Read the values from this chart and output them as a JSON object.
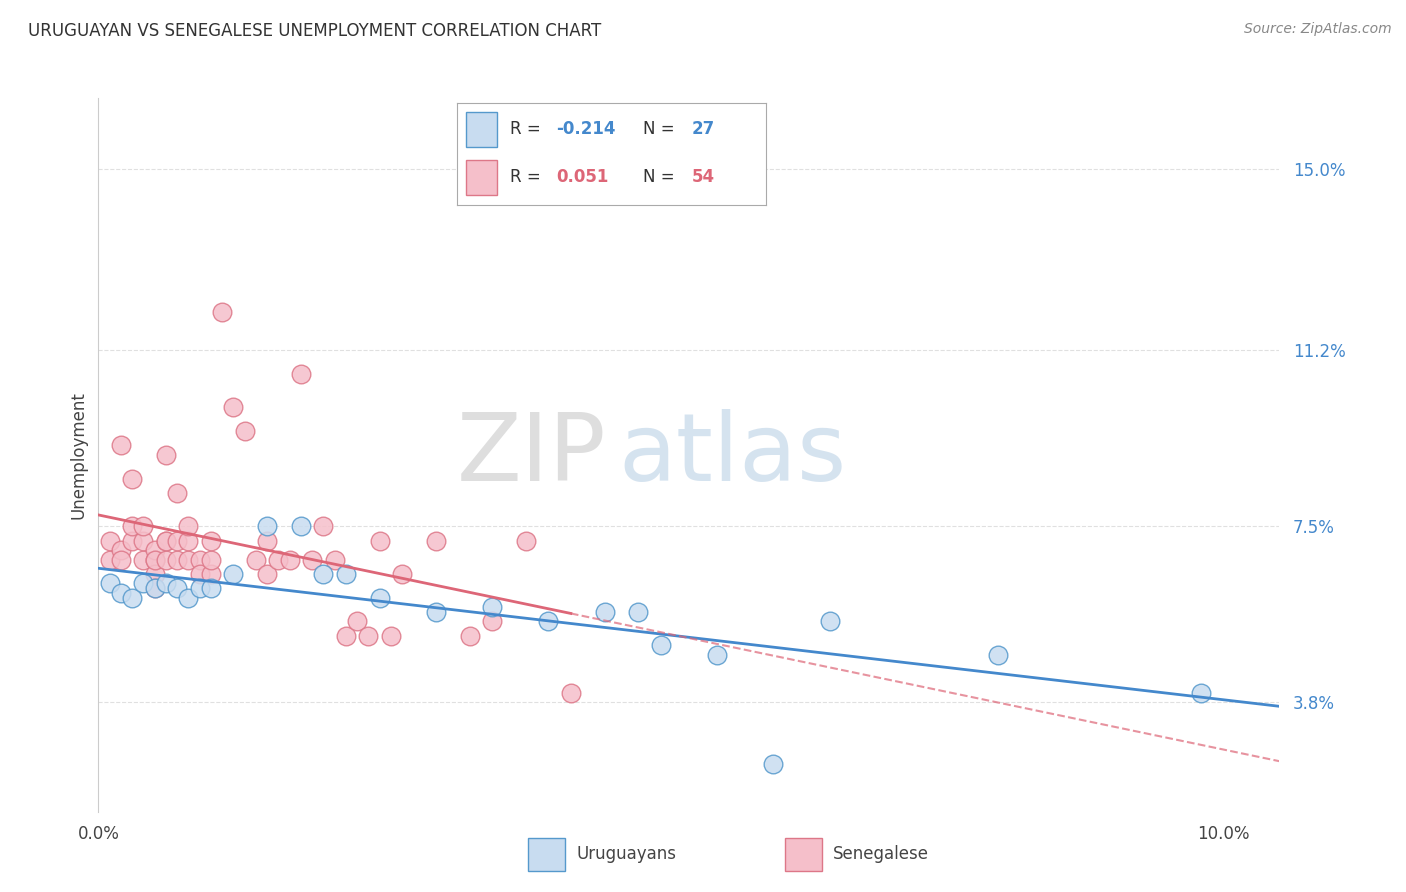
{
  "title": "URUGUAYAN VS SENEGALESE UNEMPLOYMENT CORRELATION CHART",
  "source": "Source: ZipAtlas.com",
  "ylabel": "Unemployment",
  "ytick_labels": [
    "15.0%",
    "11.2%",
    "7.5%",
    "3.8%"
  ],
  "ytick_values": [
    0.15,
    0.112,
    0.075,
    0.038
  ],
  "xlim": [
    0.0,
    0.105
  ],
  "ylim": [
    0.015,
    0.165
  ],
  "watermark_zip": "ZIP",
  "watermark_atlas": "atlas",
  "background_color": "#ffffff",
  "grid_color": "#e0e0e0",
  "uruguayan_fill": "#c8dcf0",
  "senegalese_fill": "#f5bfca",
  "uruguayan_edge": "#5599cc",
  "senegalese_edge": "#dd7788",
  "uruguayan_line_color": "#4488cc",
  "senegalese_line_color": "#dd6677",
  "ux": [
    0.001,
    0.002,
    0.003,
    0.004,
    0.005,
    0.006,
    0.007,
    0.008,
    0.009,
    0.01,
    0.012,
    0.015,
    0.018,
    0.02,
    0.022,
    0.025,
    0.03,
    0.035,
    0.04,
    0.045,
    0.048,
    0.05,
    0.055,
    0.06,
    0.065,
    0.08,
    0.098
  ],
  "uy": [
    0.063,
    0.061,
    0.06,
    0.063,
    0.062,
    0.063,
    0.062,
    0.06,
    0.062,
    0.062,
    0.065,
    0.075,
    0.075,
    0.065,
    0.065,
    0.06,
    0.057,
    0.058,
    0.055,
    0.057,
    0.057,
    0.05,
    0.048,
    0.025,
    0.055,
    0.048,
    0.04
  ],
  "sx": [
    0.001,
    0.001,
    0.002,
    0.002,
    0.002,
    0.003,
    0.003,
    0.003,
    0.004,
    0.004,
    0.004,
    0.005,
    0.005,
    0.005,
    0.005,
    0.005,
    0.006,
    0.006,
    0.006,
    0.006,
    0.007,
    0.007,
    0.007,
    0.008,
    0.008,
    0.008,
    0.009,
    0.009,
    0.01,
    0.01,
    0.01,
    0.011,
    0.012,
    0.013,
    0.014,
    0.015,
    0.015,
    0.016,
    0.017,
    0.018,
    0.019,
    0.02,
    0.021,
    0.022,
    0.023,
    0.024,
    0.025,
    0.026,
    0.027,
    0.03,
    0.033,
    0.035,
    0.038,
    0.042
  ],
  "sy": [
    0.068,
    0.072,
    0.07,
    0.068,
    0.092,
    0.072,
    0.075,
    0.085,
    0.068,
    0.072,
    0.075,
    0.068,
    0.07,
    0.065,
    0.062,
    0.068,
    0.072,
    0.068,
    0.072,
    0.09,
    0.068,
    0.072,
    0.082,
    0.068,
    0.072,
    0.075,
    0.068,
    0.065,
    0.065,
    0.068,
    0.072,
    0.12,
    0.1,
    0.095,
    0.068,
    0.072,
    0.065,
    0.068,
    0.068,
    0.107,
    0.068,
    0.075,
    0.068,
    0.052,
    0.055,
    0.052,
    0.072,
    0.052,
    0.065,
    0.072,
    0.052,
    0.055,
    0.072,
    0.04
  ]
}
